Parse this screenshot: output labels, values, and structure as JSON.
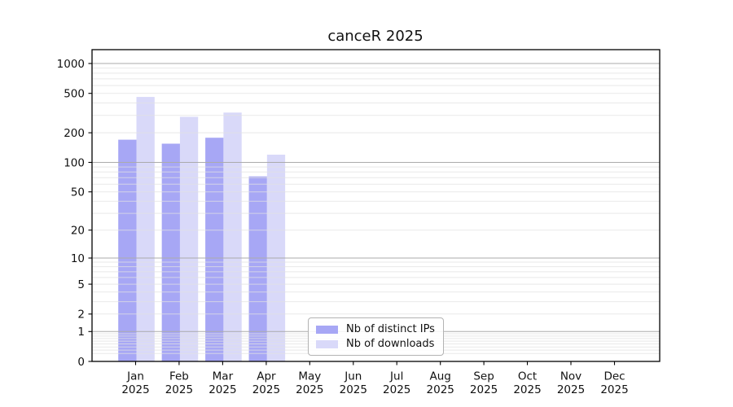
{
  "chart_data": {
    "type": "bar",
    "title": "canceR 2025",
    "categories": [
      "Jan",
      "Feb",
      "Mar",
      "Apr",
      "May",
      "Jun",
      "Jul",
      "Aug",
      "Sep",
      "Oct",
      "Nov",
      "Dec"
    ],
    "year_label": "2025",
    "series": [
      {
        "name": "Nb of distinct IPs",
        "color": "#a7a7f5",
        "values": [
          170,
          155,
          178,
          72,
          null,
          null,
          null,
          null,
          null,
          null,
          null,
          null
        ]
      },
      {
        "name": "Nb of downloads",
        "color": "#d9d9f9",
        "values": [
          460,
          290,
          320,
          120,
          null,
          null,
          null,
          null,
          null,
          null,
          null,
          null
        ]
      }
    ],
    "yscale": "log1p",
    "yticks": [
      0,
      1,
      2,
      5,
      10,
      20,
      50,
      100,
      200,
      500,
      1000
    ],
    "ylim": [
      0,
      1380
    ],
    "grid": {
      "major": [
        1,
        10,
        100,
        1000
      ],
      "major_color": "#ababab",
      "minor_color": "#e2e2e2"
    },
    "legend": {
      "position": "bottom-center-left",
      "entries": [
        "Nb of distinct IPs",
        "Nb of downloads"
      ]
    }
  }
}
